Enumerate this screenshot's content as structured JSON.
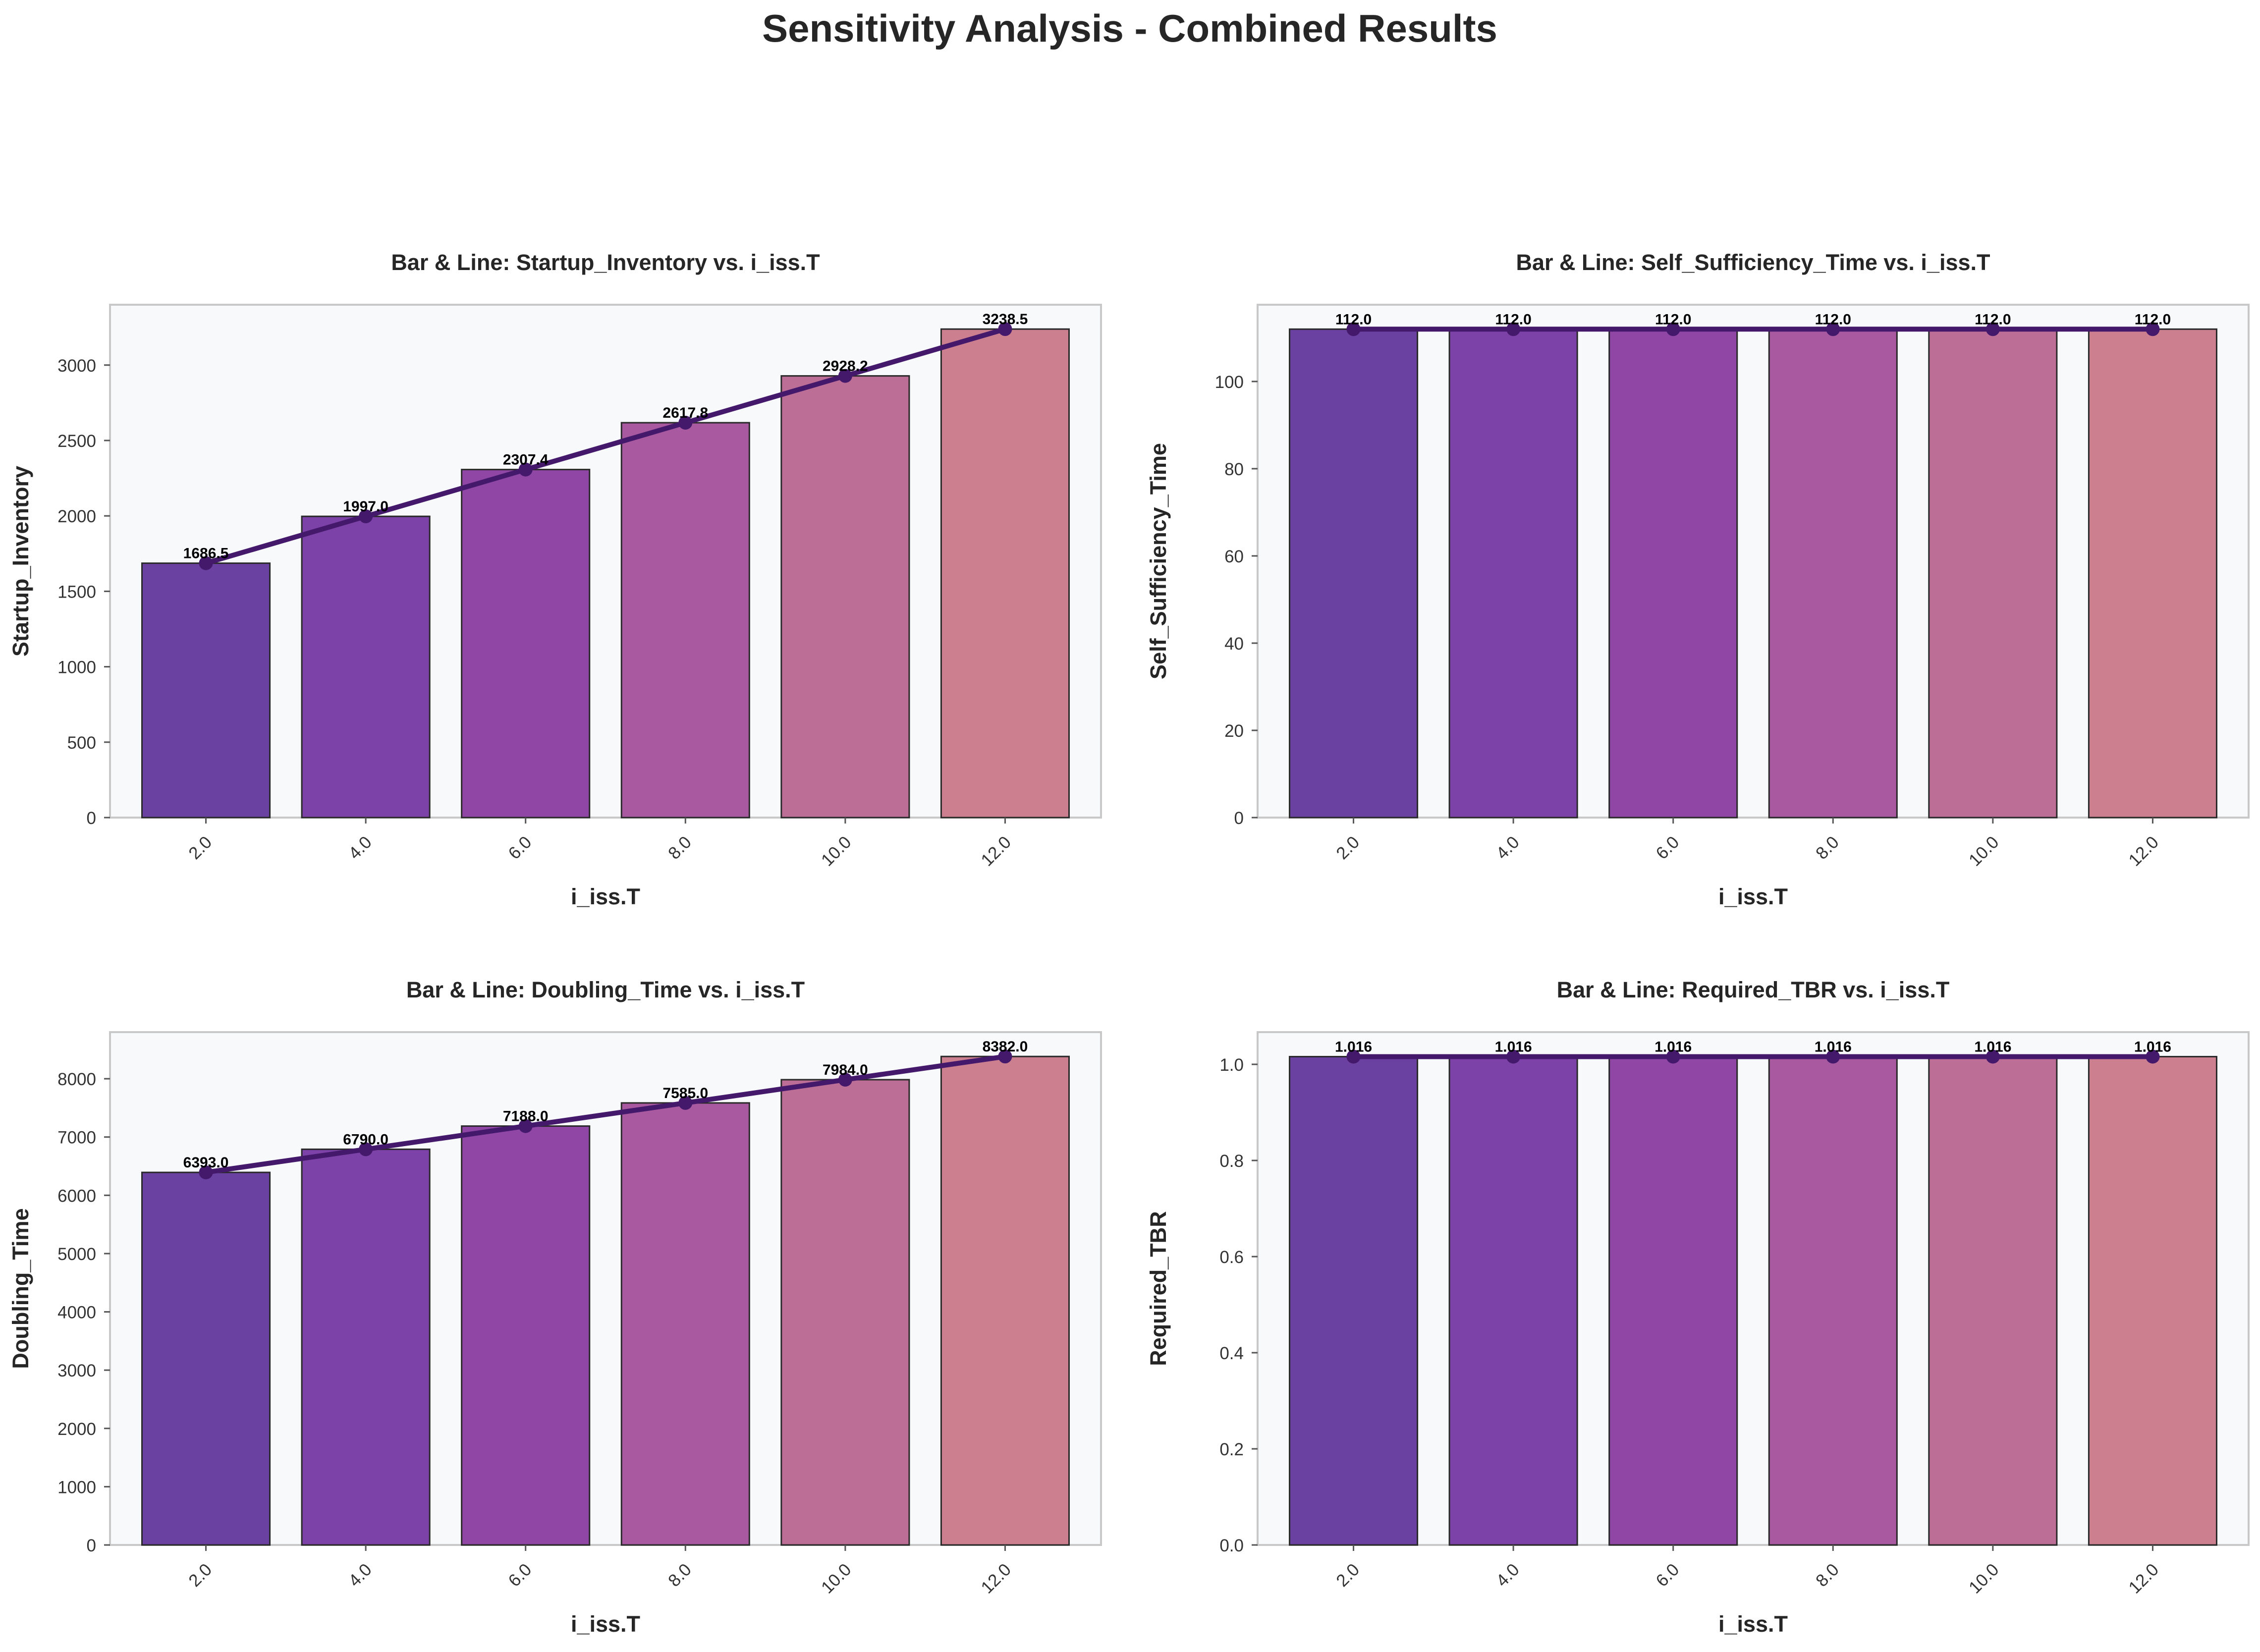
{
  "title": "Sensitivity Analysis - Combined Results",
  "colors": {
    "bars": [
      "#6a41a1",
      "#7d42a8",
      "#9046a5",
      "#a859a0",
      "#bc6e96",
      "#cc808f"
    ],
    "line": "#44196b",
    "plot_bg": "#f8f9fb",
    "axis_frame": "#c8c8c8",
    "bar_edge": "#2a2a2a"
  },
  "chart_data": [
    {
      "type": "bar",
      "title": "Bar & Line: Startup_Inventory vs. i_iss.T",
      "xlabel": "i_iss.T",
      "ylabel": "Startup_Inventory",
      "categories": [
        "2.0",
        "4.0",
        "6.0",
        "8.0",
        "10.0",
        "12.0"
      ],
      "values": [
        1686.5,
        1997.0,
        2307.4,
        2617.8,
        2928.2,
        3238.5
      ],
      "labels": [
        "1686.5",
        "1997.0",
        "2307.4",
        "2617.8",
        "2928.2",
        "3238.5"
      ],
      "ylim": [
        0,
        3400
      ],
      "yticks": [
        0,
        500,
        1000,
        1500,
        2000,
        2500,
        3000
      ],
      "grid": false,
      "overlay": "line"
    },
    {
      "type": "bar",
      "title": "Bar & Line: Self_Sufficiency_Time vs. i_iss.T",
      "xlabel": "i_iss.T",
      "ylabel": "Self_Sufficiency_Time",
      "categories": [
        "2.0",
        "4.0",
        "6.0",
        "8.0",
        "10.0",
        "12.0"
      ],
      "values": [
        112.0,
        112.0,
        112.0,
        112.0,
        112.0,
        112.0
      ],
      "labels": [
        "112.0",
        "112.0",
        "112.0",
        "112.0",
        "112.0",
        "112.0"
      ],
      "ylim": [
        0,
        117.6
      ],
      "yticks": [
        0,
        20,
        40,
        60,
        80,
        100
      ],
      "grid": false,
      "overlay": "line"
    },
    {
      "type": "bar",
      "title": "Bar & Line: Doubling_Time vs. i_iss.T",
      "xlabel": "i_iss.T",
      "ylabel": "Doubling_Time",
      "categories": [
        "2.0",
        "4.0",
        "6.0",
        "8.0",
        "10.0",
        "12.0"
      ],
      "values": [
        6393.0,
        6790.0,
        7188.0,
        7585.0,
        7984.0,
        8382.0
      ],
      "labels": [
        "6393.0",
        "6790.0",
        "7188.0",
        "7585.0",
        "7984.0",
        "8382.0"
      ],
      "ylim": [
        0,
        8800
      ],
      "yticks": [
        0,
        1000,
        2000,
        3000,
        4000,
        5000,
        6000,
        7000,
        8000
      ],
      "grid": false,
      "overlay": "line"
    },
    {
      "type": "bar",
      "title": "Bar & Line: Required_TBR vs. i_iss.T",
      "xlabel": "i_iss.T",
      "ylabel": "Required_TBR",
      "categories": [
        "2.0",
        "4.0",
        "6.0",
        "8.0",
        "10.0",
        "12.0"
      ],
      "values": [
        1.016,
        1.016,
        1.016,
        1.016,
        1.016,
        1.016
      ],
      "labels": [
        "1.016",
        "1.016",
        "1.016",
        "1.016",
        "1.016",
        "1.016"
      ],
      "ylim": [
        0,
        1.067
      ],
      "yticks": [
        0.0,
        0.2,
        0.4,
        0.6,
        0.8,
        1.0
      ],
      "yticklabels": [
        "0.0",
        "0.2",
        "0.4",
        "0.6",
        "0.8",
        "1.0"
      ],
      "grid": false,
      "overlay": "line"
    }
  ]
}
